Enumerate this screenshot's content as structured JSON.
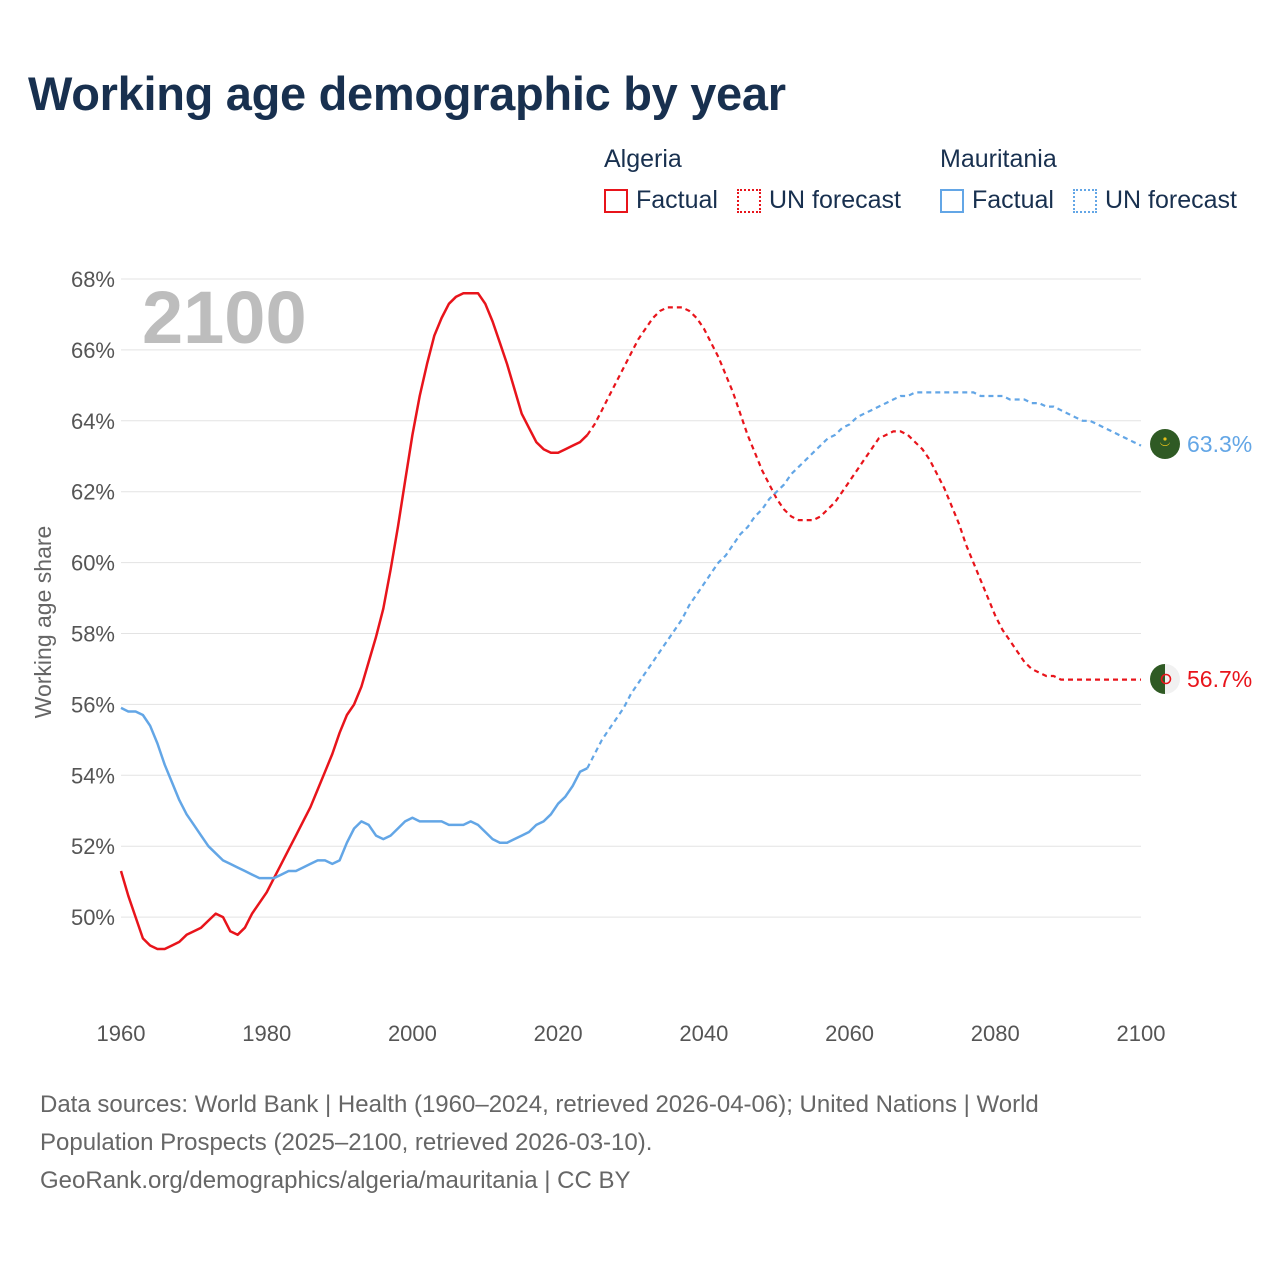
{
  "title": "Working age demographic by year",
  "legend": {
    "groups": [
      {
        "name": "Algeria",
        "factual": "Factual",
        "forecast": "UN forecast"
      },
      {
        "name": "Mauritania",
        "factual": "Factual",
        "forecast": "UN forecast"
      }
    ]
  },
  "colors": {
    "algeria": "#e8141b",
    "mauritania": "#63a6e6",
    "grid": "#e3e3e3"
  },
  "source": {
    "line1": "Data sources: World Bank | Health (1960–2024, retrieved 2026-04-06); United Nations | World",
    "line2": "Population Prospects (2025–2100, retrieved 2026-03-10).",
    "line3": "GeoRank.org/demographics/algeria/mauritania | CC BY"
  },
  "chart_data": {
    "type": "line",
    "title": "Working age demographic by year",
    "xlabel": "",
    "ylabel": "Working age share",
    "current_year_label": "2100",
    "xlim": [
      1960,
      2100
    ],
    "ylim": [
      48,
      68
    ],
    "x_ticks": [
      1960,
      1980,
      2000,
      2020,
      2040,
      2060,
      2080,
      2100
    ],
    "x_tick_labels": [
      "1960",
      "1980",
      "2000",
      "2020",
      "2040",
      "2060",
      "2080",
      "2100"
    ],
    "y_ticks": [
      50,
      52,
      54,
      56,
      58,
      60,
      62,
      64,
      66,
      68
    ],
    "y_tick_labels": [
      "50%",
      "52%",
      "54%",
      "56%",
      "58%",
      "60%",
      "62%",
      "64%",
      "66%",
      "68%"
    ],
    "factual_until": 2024,
    "series": [
      {
        "name": "Algeria",
        "end_label": "56.7%",
        "points": [
          [
            1960,
            51.3
          ],
          [
            1961,
            50.6
          ],
          [
            1962,
            50.0
          ],
          [
            1963,
            49.4
          ],
          [
            1964,
            49.2
          ],
          [
            1965,
            49.1
          ],
          [
            1966,
            49.1
          ],
          [
            1967,
            49.2
          ],
          [
            1968,
            49.3
          ],
          [
            1969,
            49.5
          ],
          [
            1970,
            49.6
          ],
          [
            1971,
            49.7
          ],
          [
            1972,
            49.9
          ],
          [
            1973,
            50.1
          ],
          [
            1974,
            50.0
          ],
          [
            1975,
            49.6
          ],
          [
            1976,
            49.5
          ],
          [
            1977,
            49.7
          ],
          [
            1978,
            50.1
          ],
          [
            1979,
            50.4
          ],
          [
            1980,
            50.7
          ],
          [
            1981,
            51.1
          ],
          [
            1982,
            51.5
          ],
          [
            1983,
            51.9
          ],
          [
            1984,
            52.3
          ],
          [
            1985,
            52.7
          ],
          [
            1986,
            53.1
          ],
          [
            1987,
            53.6
          ],
          [
            1988,
            54.1
          ],
          [
            1989,
            54.6
          ],
          [
            1990,
            55.2
          ],
          [
            1991,
            55.7
          ],
          [
            1992,
            56.0
          ],
          [
            1993,
            56.5
          ],
          [
            1994,
            57.2
          ],
          [
            1995,
            57.9
          ],
          [
            1996,
            58.7
          ],
          [
            1997,
            59.8
          ],
          [
            1998,
            61.0
          ],
          [
            1999,
            62.3
          ],
          [
            2000,
            63.6
          ],
          [
            2001,
            64.7
          ],
          [
            2002,
            65.6
          ],
          [
            2003,
            66.4
          ],
          [
            2004,
            66.9
          ],
          [
            2005,
            67.3
          ],
          [
            2006,
            67.5
          ],
          [
            2007,
            67.6
          ],
          [
            2008,
            67.6
          ],
          [
            2009,
            67.6
          ],
          [
            2010,
            67.3
          ],
          [
            2011,
            66.8
          ],
          [
            2012,
            66.2
          ],
          [
            2013,
            65.6
          ],
          [
            2014,
            64.9
          ],
          [
            2015,
            64.2
          ],
          [
            2016,
            63.8
          ],
          [
            2017,
            63.4
          ],
          [
            2018,
            63.2
          ],
          [
            2019,
            63.1
          ],
          [
            2020,
            63.1
          ],
          [
            2021,
            63.2
          ],
          [
            2022,
            63.3
          ],
          [
            2023,
            63.4
          ],
          [
            2024,
            63.6
          ],
          [
            2025,
            63.9
          ],
          [
            2026,
            64.3
          ],
          [
            2027,
            64.7
          ],
          [
            2028,
            65.1
          ],
          [
            2029,
            65.5
          ],
          [
            2030,
            65.9
          ],
          [
            2031,
            66.3
          ],
          [
            2032,
            66.6
          ],
          [
            2033,
            66.9
          ],
          [
            2034,
            67.1
          ],
          [
            2035,
            67.2
          ],
          [
            2036,
            67.2
          ],
          [
            2037,
            67.2
          ],
          [
            2038,
            67.1
          ],
          [
            2039,
            66.9
          ],
          [
            2040,
            66.6
          ],
          [
            2041,
            66.2
          ],
          [
            2042,
            65.8
          ],
          [
            2043,
            65.3
          ],
          [
            2044,
            64.8
          ],
          [
            2045,
            64.2
          ],
          [
            2046,
            63.6
          ],
          [
            2047,
            63.1
          ],
          [
            2048,
            62.6
          ],
          [
            2049,
            62.2
          ],
          [
            2050,
            61.8
          ],
          [
            2051,
            61.5
          ],
          [
            2052,
            61.3
          ],
          [
            2053,
            61.2
          ],
          [
            2054,
            61.2
          ],
          [
            2055,
            61.2
          ],
          [
            2056,
            61.3
          ],
          [
            2057,
            61.5
          ],
          [
            2058,
            61.7
          ],
          [
            2059,
            62.0
          ],
          [
            2060,
            62.3
          ],
          [
            2061,
            62.6
          ],
          [
            2062,
            62.9
          ],
          [
            2063,
            63.2
          ],
          [
            2064,
            63.5
          ],
          [
            2065,
            63.6
          ],
          [
            2066,
            63.7
          ],
          [
            2067,
            63.7
          ],
          [
            2068,
            63.6
          ],
          [
            2069,
            63.4
          ],
          [
            2070,
            63.2
          ],
          [
            2071,
            62.9
          ],
          [
            2072,
            62.5
          ],
          [
            2073,
            62.1
          ],
          [
            2074,
            61.6
          ],
          [
            2075,
            61.1
          ],
          [
            2076,
            60.5
          ],
          [
            2077,
            60.0
          ],
          [
            2078,
            59.5
          ],
          [
            2079,
            59.0
          ],
          [
            2080,
            58.5
          ],
          [
            2081,
            58.1
          ],
          [
            2082,
            57.8
          ],
          [
            2083,
            57.5
          ],
          [
            2084,
            57.2
          ],
          [
            2085,
            57.0
          ],
          [
            2086,
            56.9
          ],
          [
            2087,
            56.8
          ],
          [
            2088,
            56.8
          ],
          [
            2089,
            56.7
          ],
          [
            2090,
            56.7
          ],
          [
            2091,
            56.7
          ],
          [
            2092,
            56.7
          ],
          [
            2093,
            56.7
          ],
          [
            2094,
            56.7
          ],
          [
            2095,
            56.7
          ],
          [
            2096,
            56.7
          ],
          [
            2097,
            56.7
          ],
          [
            2098,
            56.7
          ],
          [
            2099,
            56.7
          ],
          [
            2100,
            56.7
          ]
        ]
      },
      {
        "name": "Mauritania",
        "end_label": "63.3%",
        "points": [
          [
            1960,
            55.9
          ],
          [
            1961,
            55.8
          ],
          [
            1962,
            55.8
          ],
          [
            1963,
            55.7
          ],
          [
            1964,
            55.4
          ],
          [
            1965,
            54.9
          ],
          [
            1966,
            54.3
          ],
          [
            1967,
            53.8
          ],
          [
            1968,
            53.3
          ],
          [
            1969,
            52.9
          ],
          [
            1970,
            52.6
          ],
          [
            1971,
            52.3
          ],
          [
            1972,
            52.0
          ],
          [
            1973,
            51.8
          ],
          [
            1974,
            51.6
          ],
          [
            1975,
            51.5
          ],
          [
            1976,
            51.4
          ],
          [
            1977,
            51.3
          ],
          [
            1978,
            51.2
          ],
          [
            1979,
            51.1
          ],
          [
            1980,
            51.1
          ],
          [
            1981,
            51.1
          ],
          [
            1982,
            51.2
          ],
          [
            1983,
            51.3
          ],
          [
            1984,
            51.3
          ],
          [
            1985,
            51.4
          ],
          [
            1986,
            51.5
          ],
          [
            1987,
            51.6
          ],
          [
            1988,
            51.6
          ],
          [
            1989,
            51.5
          ],
          [
            1990,
            51.6
          ],
          [
            1991,
            52.1
          ],
          [
            1992,
            52.5
          ],
          [
            1993,
            52.7
          ],
          [
            1994,
            52.6
          ],
          [
            1995,
            52.3
          ],
          [
            1996,
            52.2
          ],
          [
            1997,
            52.3
          ],
          [
            1998,
            52.5
          ],
          [
            1999,
            52.7
          ],
          [
            2000,
            52.8
          ],
          [
            2001,
            52.7
          ],
          [
            2002,
            52.7
          ],
          [
            2003,
            52.7
          ],
          [
            2004,
            52.7
          ],
          [
            2005,
            52.6
          ],
          [
            2006,
            52.6
          ],
          [
            2007,
            52.6
          ],
          [
            2008,
            52.7
          ],
          [
            2009,
            52.6
          ],
          [
            2010,
            52.4
          ],
          [
            2011,
            52.2
          ],
          [
            2012,
            52.1
          ],
          [
            2013,
            52.1
          ],
          [
            2014,
            52.2
          ],
          [
            2015,
            52.3
          ],
          [
            2016,
            52.4
          ],
          [
            2017,
            52.6
          ],
          [
            2018,
            52.7
          ],
          [
            2019,
            52.9
          ],
          [
            2020,
            53.2
          ],
          [
            2021,
            53.4
          ],
          [
            2022,
            53.7
          ],
          [
            2023,
            54.1
          ],
          [
            2024,
            54.2
          ],
          [
            2025,
            54.6
          ],
          [
            2026,
            55.0
          ],
          [
            2027,
            55.3
          ],
          [
            2028,
            55.6
          ],
          [
            2029,
            55.9
          ],
          [
            2030,
            56.3
          ],
          [
            2031,
            56.6
          ],
          [
            2032,
            56.9
          ],
          [
            2033,
            57.2
          ],
          [
            2034,
            57.5
          ],
          [
            2035,
            57.8
          ],
          [
            2036,
            58.1
          ],
          [
            2037,
            58.4
          ],
          [
            2038,
            58.8
          ],
          [
            2039,
            59.1
          ],
          [
            2040,
            59.4
          ],
          [
            2041,
            59.7
          ],
          [
            2042,
            60.0
          ],
          [
            2043,
            60.2
          ],
          [
            2044,
            60.5
          ],
          [
            2045,
            60.8
          ],
          [
            2046,
            61.0
          ],
          [
            2047,
            61.3
          ],
          [
            2048,
            61.5
          ],
          [
            2049,
            61.8
          ],
          [
            2050,
            62.0
          ],
          [
            2051,
            62.2
          ],
          [
            2052,
            62.5
          ],
          [
            2053,
            62.7
          ],
          [
            2054,
            62.9
          ],
          [
            2055,
            63.1
          ],
          [
            2056,
            63.3
          ],
          [
            2057,
            63.5
          ],
          [
            2058,
            63.6
          ],
          [
            2059,
            63.8
          ],
          [
            2060,
            63.9
          ],
          [
            2061,
            64.1
          ],
          [
            2062,
            64.2
          ],
          [
            2063,
            64.3
          ],
          [
            2064,
            64.4
          ],
          [
            2065,
            64.5
          ],
          [
            2066,
            64.6
          ],
          [
            2067,
            64.7
          ],
          [
            2068,
            64.7
          ],
          [
            2069,
            64.8
          ],
          [
            2070,
            64.8
          ],
          [
            2071,
            64.8
          ],
          [
            2072,
            64.8
          ],
          [
            2073,
            64.8
          ],
          [
            2074,
            64.8
          ],
          [
            2075,
            64.8
          ],
          [
            2076,
            64.8
          ],
          [
            2077,
            64.8
          ],
          [
            2078,
            64.7
          ],
          [
            2079,
            64.7
          ],
          [
            2080,
            64.7
          ],
          [
            2081,
            64.7
          ],
          [
            2082,
            64.6
          ],
          [
            2083,
            64.6
          ],
          [
            2084,
            64.6
          ],
          [
            2085,
            64.5
          ],
          [
            2086,
            64.5
          ],
          [
            2087,
            64.4
          ],
          [
            2088,
            64.4
          ],
          [
            2089,
            64.3
          ],
          [
            2090,
            64.2
          ],
          [
            2091,
            64.1
          ],
          [
            2092,
            64.0
          ],
          [
            2093,
            64.0
          ],
          [
            2094,
            63.9
          ],
          [
            2095,
            63.8
          ],
          [
            2096,
            63.7
          ],
          [
            2097,
            63.6
          ],
          [
            2098,
            63.5
          ],
          [
            2099,
            63.4
          ],
          [
            2100,
            63.3
          ]
        ]
      }
    ]
  }
}
